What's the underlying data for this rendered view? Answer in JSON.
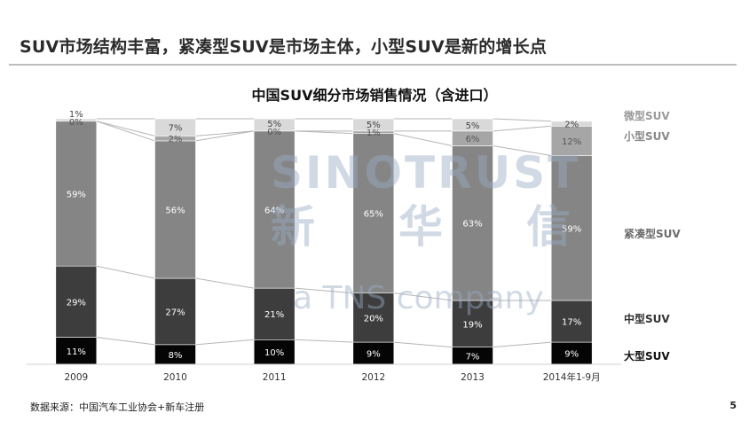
{
  "slide": {
    "title": "SUV市场结构丰富，紧凑型SUV是市场主体，小型SUV是新的增长点",
    "source": "数据来源：中国汽车工业协会+新车注册",
    "page_number": "5"
  },
  "watermark": {
    "brand": "SINOTRUST",
    "brand_cn": "新华信",
    "tagline": "a TNS company"
  },
  "chart_data": {
    "type": "bar",
    "stacked": true,
    "percent_stacked": true,
    "title": "中国SUV细分市场销售情况（含进口）",
    "categories": [
      "2009",
      "2010",
      "2011",
      "2012",
      "2013",
      "2014年1-9月"
    ],
    "series": [
      {
        "name": "大型SUV",
        "values": [
          11,
          8,
          10,
          9,
          7,
          9
        ],
        "labels": [
          "11%",
          "8%",
          "10%",
          "9%",
          "7%",
          "9%"
        ],
        "color": "#050505",
        "label_color": "#ffffff",
        "legend_color": "#111111"
      },
      {
        "name": "中型SUV",
        "values": [
          29,
          27,
          21,
          20,
          19,
          17
        ],
        "labels": [
          "29%",
          "27%",
          "21%",
          "20%",
          "19%",
          "17%"
        ],
        "color": "#3d3d3d",
        "label_color": "#ffffff",
        "legend_color": "#333333"
      },
      {
        "name": "紧凑型SUV",
        "values": [
          59,
          56,
          64,
          65,
          63,
          59
        ],
        "labels": [
          "59%",
          "56%",
          "64%",
          "65%",
          "63%",
          "59%"
        ],
        "color": "#858585",
        "label_color": "#ffffff",
        "legend_color": "#6d6d6d"
      },
      {
        "name": "小型SUV",
        "values": [
          0,
          2,
          0,
          1,
          6,
          12
        ],
        "labels": [
          "0%",
          "2%",
          "0%",
          "1%",
          "6%",
          "12%"
        ],
        "color": "#a6a6a6",
        "label_color": "#555555",
        "legend_color": "#8a8a8a"
      },
      {
        "name": "微型SUV",
        "values": [
          1,
          7,
          5,
          5,
          5,
          2
        ],
        "labels": [
          "1%",
          "7%",
          "5%",
          "5%",
          "5%",
          "2%"
        ],
        "color": "#d9d9d9",
        "label_color": "#444444",
        "legend_color": "#9a9a9a"
      }
    ],
    "ylim": [
      0,
      100
    ],
    "legend": "right",
    "grid": false
  }
}
